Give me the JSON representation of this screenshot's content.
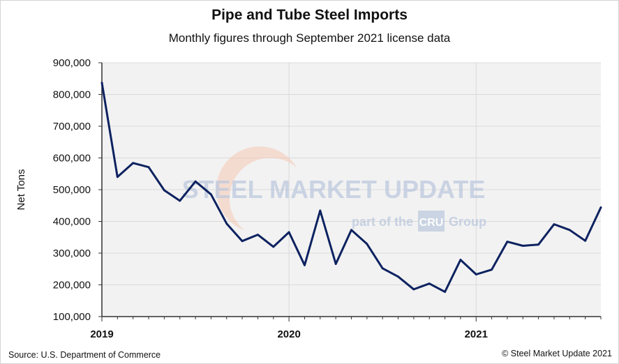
{
  "chart_data": {
    "type": "line",
    "title": "Pipe and Tube Steel Imports",
    "subtitle": "Monthly figures through September 2021 license data",
    "ylabel": "Net Tons",
    "xlabel": "",
    "ylim": [
      100000,
      900000
    ],
    "yticks": [
      100000,
      200000,
      300000,
      400000,
      500000,
      600000,
      700000,
      800000,
      900000
    ],
    "ytick_labels": [
      "100,000",
      "200,000",
      "300,000",
      "400,000",
      "500,000",
      "600,000",
      "700,000",
      "800,000",
      "900,000"
    ],
    "xlim": [
      "2019-01",
      "2021-09"
    ],
    "xticks": [
      {
        "label": "2019",
        "index": 0
      },
      {
        "label": "2020",
        "index": 12
      },
      {
        "label": "2021",
        "index": 24
      }
    ],
    "grid": true,
    "series": [
      {
        "color": "#0d2260",
        "x": [
          "2019-01",
          "2019-02",
          "2019-03",
          "2019-04",
          "2019-05",
          "2019-06",
          "2019-07",
          "2019-08",
          "2019-09",
          "2019-10",
          "2019-11",
          "2019-12",
          "2020-01",
          "2020-02",
          "2020-03",
          "2020-04",
          "2020-05",
          "2020-06",
          "2020-07",
          "2020-08",
          "2020-09",
          "2020-10",
          "2020-11",
          "2020-12",
          "2021-01",
          "2021-02",
          "2021-03",
          "2021-04",
          "2021-05",
          "2021-06",
          "2021-07",
          "2021-08",
          "2021-09"
        ],
        "values": [
          837000,
          540000,
          584000,
          571000,
          498000,
          465000,
          526000,
          485000,
          393000,
          338000,
          358000,
          320000,
          366000,
          262000,
          434000,
          266000,
          373000,
          329000,
          252000,
          226000,
          186000,
          204000,
          178000,
          279000,
          233000,
          248000,
          336000,
          323000,
          327000,
          391000,
          373000,
          339000,
          444000
        ]
      }
    ]
  },
  "watermark": {
    "brand_line": "STEEL MARKET UPDATE",
    "tagline_prefix": "part of the",
    "tagline_logo": "CRU",
    "tagline_suffix": "Group"
  },
  "footer": {
    "source": "Source: U.S. Department of Commerce",
    "copyright": "© Steel Market Update 2021"
  },
  "colors": {
    "line": "#0d2260",
    "plot_background": "#f2f2f2",
    "gridline": "#d9d9d9",
    "watermark_blue": "#b8c5dc",
    "watermark_orange": "#f4b7a0"
  }
}
